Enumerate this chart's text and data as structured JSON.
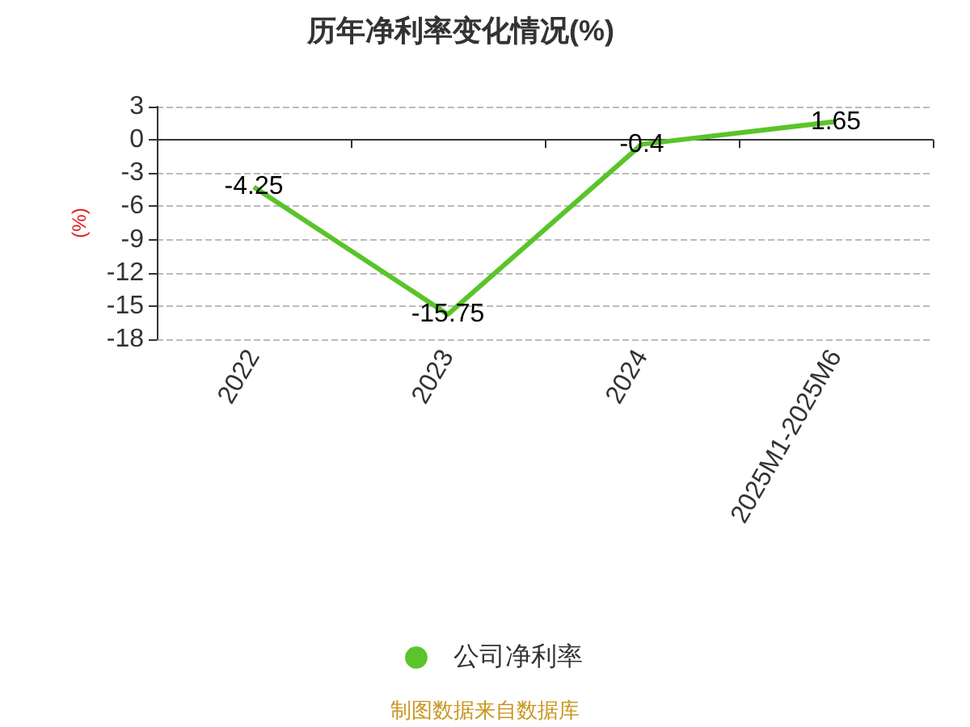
{
  "chart_data": {
    "type": "line",
    "title": "历年净利率变化情况(%)",
    "ylabel": "(%)",
    "categories": [
      "2022",
      "2023",
      "2024",
      "2025M1-2025M6"
    ],
    "series": [
      {
        "name": "公司净利率",
        "color": "#5ac42a",
        "values": [
          -4.25,
          -15.75,
          -0.4,
          1.65
        ]
      }
    ],
    "ylim": [
      -18,
      3
    ],
    "yticks": [
      3,
      0,
      -3,
      -6,
      -9,
      -12,
      -15,
      -18
    ],
    "grid": "y",
    "legend": "bottom",
    "data_labels": true,
    "marker": "none",
    "annotations": [
      "制图数据来自数据库"
    ]
  }
}
